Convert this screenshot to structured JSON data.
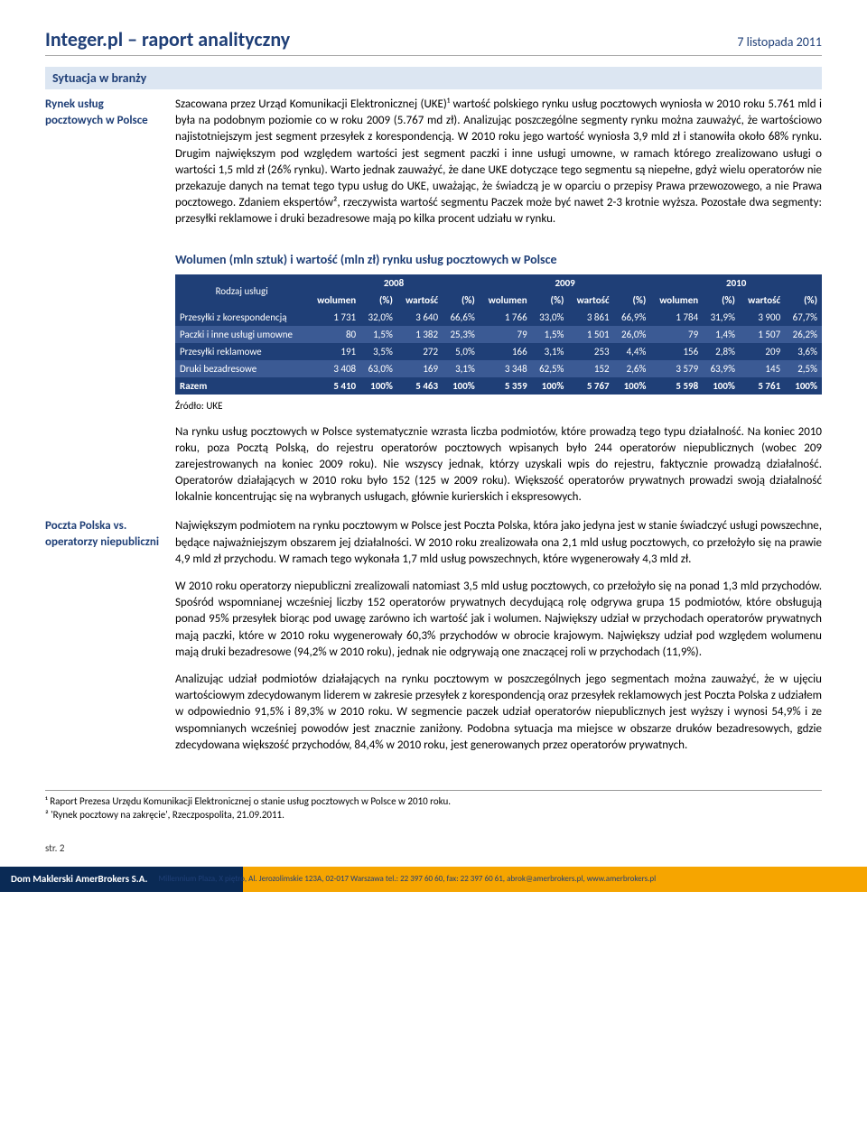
{
  "header": {
    "title": "Integer.pl – raport analityczny",
    "date": "7 listopada 2011"
  },
  "section_title": "Sytuacja w branży",
  "block1": {
    "side": "Rynek usług pocztowych w Polsce",
    "para": "Szacowana przez Urząd Komunikacji Elektronicznej (UKE)¹ wartość polskiego rynku usług pocztowych wyniosła w 2010 roku 5.761 mld i była na podobnym poziomie co w roku 2009 (5.767 md zł). Analizując poszczególne segmenty rynku można zauważyć, że wartościowo najistotniejszym jest segment przesyłek z korespondencją. W 2010 roku jego wartość wyniosła 3,9 mld zł i stanowiła około 68% rynku. Drugim największym pod względem wartości jest segment paczki i inne usługi umowne, w ramach którego zrealizowano usługi o wartości 1,5 mld zł (26% rynku). Warto jednak zauważyć, że dane UKE dotyczące tego segmentu są niepełne, gdyż wielu operatorów nie przekazuje danych na temat tego typu usług do UKE, uważając, że świadczą je w oparciu o przepisy Prawa przewozowego, a nie Prawa pocztowego. Zdaniem ekspertów², rzeczywista wartość segmentu Paczek może być nawet 2-3 krotnie wyższa. Pozostałe dwa segmenty: przesyłki reklamowe i druki bezadresowe mają po kilka procent udziału w rynku."
  },
  "table": {
    "title": "Wolumen (mln sztuk) i wartość (mln zł) rynku usług pocztowych w Polsce",
    "years": [
      "2008",
      "2009",
      "2010"
    ],
    "sub_headers": [
      "wolumen",
      "(%)",
      "wartość",
      "(%)"
    ],
    "row_label_header": "Rodzaj usługi",
    "rows": [
      {
        "label": "Przesyłki z korespondencją",
        "cells": [
          "1 731",
          "32,0%",
          "3 640",
          "66,6%",
          "1 766",
          "33,0%",
          "3 861",
          "66,9%",
          "1 784",
          "31,9%",
          "3 900",
          "67,7%"
        ]
      },
      {
        "label": "Paczki i inne usługi umowne",
        "cells": [
          "80",
          "1,5%",
          "1 382",
          "25,3%",
          "79",
          "1,5%",
          "1 501",
          "26,0%",
          "79",
          "1,4%",
          "1 507",
          "26,2%"
        ]
      },
      {
        "label": "Przesyłki reklamowe",
        "cells": [
          "191",
          "3,5%",
          "272",
          "5,0%",
          "166",
          "3,1%",
          "253",
          "4,4%",
          "156",
          "2,8%",
          "209",
          "3,6%"
        ]
      },
      {
        "label": "Druki bezadresowe",
        "cells": [
          "3 408",
          "63,0%",
          "169",
          "3,1%",
          "3 348",
          "62,5%",
          "152",
          "2,6%",
          "3 579",
          "63,9%",
          "145",
          "2,5%"
        ]
      },
      {
        "label": "Razem",
        "cells": [
          "5 410",
          "100%",
          "5 463",
          "100%",
          "5 359",
          "100%",
          "5 767",
          "100%",
          "5 598",
          "100%",
          "5 761",
          "100%"
        ]
      }
    ],
    "source": "Źródło: UKE",
    "colors": {
      "header_bg": "#1f3f77",
      "row_odd_bg": "#1f3f77",
      "row_even_bg": "#3b5a94",
      "text": "#ffffff"
    }
  },
  "para2": "Na rynku usług pocztowych w Polsce systematycznie wzrasta liczba podmiotów, które prowadzą tego typu działalność. Na koniec 2010 roku, poza Pocztą Polską, do rejestru operatorów pocztowych wpisanych było 244 operatorów niepublicznych (wobec 209 zarejestrowanych na koniec 2009 roku). Nie wszyscy jednak, którzy uzyskali wpis do rejestru, faktycznie prowadzą działalność. Operatorów działających w 2010 roku było 152 (125 w 2009 roku). Większość operatorów prywatnych prowadzi swoją działalność lokalnie koncentrując się na wybranych usługach, głównie kurierskich i ekspresowych.",
  "block2": {
    "side": "Poczta Polska vs. operatorzy niepubliczni",
    "p1": "Największym podmiotem na rynku pocztowym w Polsce jest Poczta Polska, która jako jedyna jest w stanie świadczyć usługi powszechne, będące najważniejszym obszarem jej działalności. W 2010 roku zrealizowała ona 2,1 mld usług pocztowych, co przełożyło się na prawie 4,9 mld zł przychodu. W ramach tego wykonała 1,7 mld usług powszechnych, które wygenerowały 4,3 mld zł.",
    "p2": "W 2010 roku operatorzy niepubliczni zrealizowali natomiast 3,5 mld usług pocztowych, co przełożyło się na ponad 1,3 mld przychodów. Spośród wspomnianej wcześniej liczby 152 operatorów prywatnych decydującą rolę odgrywa grupa 15 podmiotów, które obsługują ponad 95% przesyłek biorąc pod uwagę zarówno ich wartość jak i wolumen. Największy udział w przychodach operatorów prywatnych mają paczki, które w 2010 roku wygenerowały 60,3% przychodów w obrocie krajowym. Największy udział pod względem wolumenu mają druki bezadresowe (94,2% w 2010 roku), jednak nie odgrywają one znaczącej roli w przychodach (11,9%).",
    "p3": "Analizując udział podmiotów działających na rynku pocztowym w poszczególnych jego segmentach można zauważyć, że w ujęciu wartościowym zdecydowanym liderem w zakresie przesyłek z korespondencją oraz przesyłek reklamowych jest Poczta Polska z udziałem w odpowiednio 91,5% i 89,3% w 2010 roku. W segmencie paczek udział operatorów niepublicznych jest wyższy i wynosi 54,9% i ze wspomnianych wcześniej powodów jest znacznie zaniżony. Podobna sytuacja ma miejsce w obszarze druków bezadresowych, gdzie zdecydowana większość przychodów, 84,4% w 2010 roku, jest generowanych przez operatorów prywatnych."
  },
  "footnotes": {
    "f1": "¹ Raport Prezesa Urzędu Komunikacji Elektronicznej o stanie usług pocztowych w Polsce w 2010 roku.",
    "f2": "² 'Rynek pocztowy na zakręcie', Rzeczpospolita, 21.09.2011."
  },
  "page_number": "str. 2",
  "footer": {
    "company": "Dom Maklerski AmerBrokers S.A.",
    "address": "Millennium Plaza, X piętro, Al. Jerozolimskie 123A, 02-017 Warszawa   tel.: 22 397 60 60, fax: 22 397 60 61, abrok@amerbrokers.pl, www.amerbrokers.pl"
  }
}
